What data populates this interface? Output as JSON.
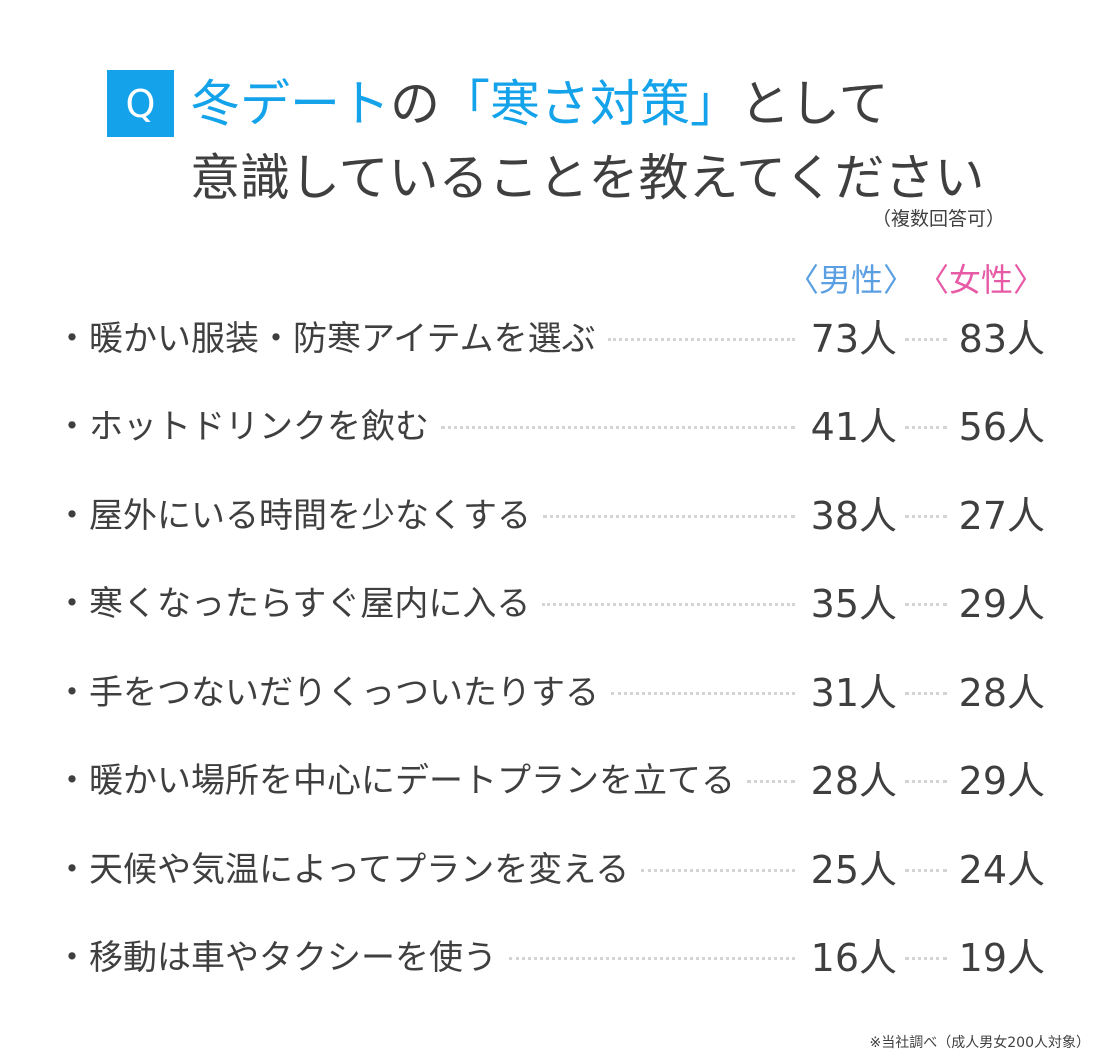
{
  "question": {
    "badge": "Q",
    "title_parts": [
      "冬デート",
      "の",
      "「寒さ対策」",
      "として"
    ],
    "title_line2": "意識していることを教えてください",
    "note": "（複数回答可）"
  },
  "colors": {
    "accent": "#14a3ea",
    "male": "#5b9fe3",
    "female": "#e65aa6",
    "text": "#3f3f3f"
  },
  "chart_data": {
    "type": "table",
    "columns": [
      "〈男性〉",
      "〈女性〉"
    ],
    "unit": "人",
    "rows": [
      {
        "label": "・暖かい服装・防寒アイテムを選ぶ",
        "male": "73人",
        "female": "83人"
      },
      {
        "label": "・ホットドリンクを飲む",
        "male": "41人",
        "female": "56人"
      },
      {
        "label": "・屋外にいる時間を少なくする",
        "male": "38人",
        "female": "27人"
      },
      {
        "label": "・寒くなったらすぐ屋内に入る",
        "male": "35人",
        "female": "29人"
      },
      {
        "label": "・手をつないだりくっついたりする",
        "male": "31人",
        "female": "28人"
      },
      {
        "label": "・暖かい場所を中心にデートプランを立てる",
        "male": "28人",
        "female": "29人"
      },
      {
        "label": "・天候や気温によってプランを変える",
        "male": "25人",
        "female": "24人"
      },
      {
        "label": "・移動は車やタクシーを使う",
        "male": "16人",
        "female": "19人"
      }
    ]
  },
  "footer": "※当社調べ（成人男女200人対象）"
}
